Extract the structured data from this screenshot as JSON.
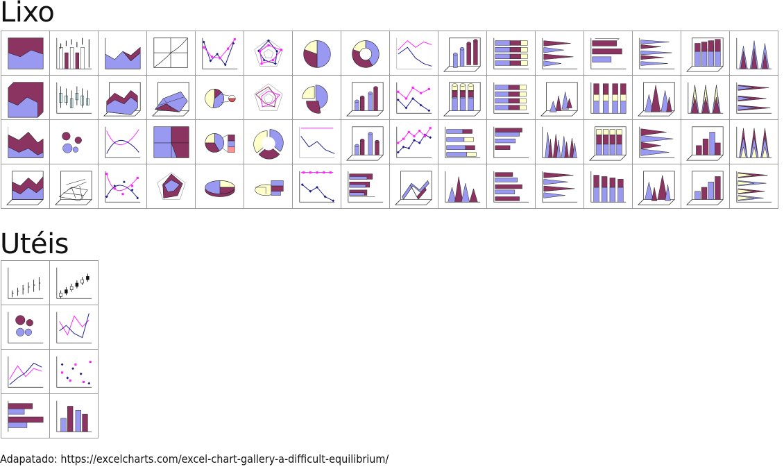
{
  "sections": {
    "lixo": {
      "title": "Lixo",
      "thumbnails": [
        {
          "icon": "area-stacked-2d-icon"
        },
        {
          "icon": "stock-volume-icon"
        },
        {
          "icon": "area-2d-icon"
        },
        {
          "icon": "surface-wireframe-top-icon"
        },
        {
          "icon": "line-markers-drop-icon"
        },
        {
          "icon": "radar-markers-icon"
        },
        {
          "icon": "pie-2d-icon"
        },
        {
          "icon": "doughnut-2d-icon"
        },
        {
          "icon": "line-2d-icon"
        },
        {
          "icon": "cylinder-3d-icon"
        },
        {
          "icon": "bar-stacked-2d-icon"
        },
        {
          "icon": "cone-bar-icon"
        },
        {
          "icon": "bar-3d-icon"
        },
        {
          "icon": "cone-bar-clustered-icon"
        },
        {
          "icon": "column-3d-stacked-icon"
        },
        {
          "icon": "cone-column-icon"
        },
        {
          "icon": "area-3d-icon"
        },
        {
          "icon": "stock-boxes-icon"
        },
        {
          "icon": "area-3d-perspective-icon"
        },
        {
          "icon": "surface-3d-icon"
        },
        {
          "icon": "pie-of-pie-icon"
        },
        {
          "icon": "radar-2d-icon"
        },
        {
          "icon": "pie-exploded-icon"
        },
        {
          "icon": "cylinder-3d-clustered-icon"
        },
        {
          "icon": "line-markers-icon"
        },
        {
          "icon": "cylinder-stacked-icon"
        },
        {
          "icon": "bar-3d-stacked-icon"
        },
        {
          "icon": "cone-3d-icon"
        },
        {
          "icon": "column-stacked-100-icon"
        },
        {
          "icon": "pyramid-3d-icon"
        },
        {
          "icon": "cone-stacked-icon"
        },
        {
          "icon": "cone-bar-stacked-icon"
        },
        {
          "icon": "area-stacked-alt-icon"
        },
        {
          "icon": "bubble-2d-icon"
        },
        {
          "icon": "scatter-smooth-icon"
        },
        {
          "icon": "surface-contour-icon"
        },
        {
          "icon": "bar-of-pie-icon"
        },
        {
          "icon": "doughnut-exploded-icon"
        },
        {
          "icon": "line-drop-icon"
        },
        {
          "icon": "cylinder-column-icon"
        },
        {
          "icon": "line-markers-dense-icon"
        },
        {
          "icon": "cylinder-bar-icon"
        },
        {
          "icon": "bar-clustered-icon"
        },
        {
          "icon": "cone-clustered-icon"
        },
        {
          "icon": "column-3d-stacked-alt-icon"
        },
        {
          "icon": "pyramid-bar-icon"
        },
        {
          "icon": "column-3d-clustered-icon"
        },
        {
          "icon": "cone-stacked-alt-icon"
        },
        {
          "icon": "area-3d-stacked-icon"
        },
        {
          "icon": "surface-3d-wireframe-icon"
        },
        {
          "icon": "scatter-smooth-markers-icon"
        },
        {
          "icon": "radar-filled-icon"
        },
        {
          "icon": "pie-3d-icon"
        },
        {
          "icon": "pie-3d-exploded-icon"
        },
        {
          "icon": "line-markers-flat-icon"
        },
        {
          "icon": "cylinder-bar-3d-icon"
        },
        {
          "icon": "line-3d-ribbon-icon"
        },
        {
          "icon": "pyramid-column-icon"
        },
        {
          "icon": "bar-3d-clustered-icon"
        },
        {
          "icon": "cone-bar-3d-icon"
        },
        {
          "icon": "column-stacked-2d-icon"
        },
        {
          "icon": "cone-3d-column-icon"
        },
        {
          "icon": "column-3d-cubes-icon"
        },
        {
          "icon": "cone-bar-3d-stacked-icon"
        }
      ]
    },
    "uteis": {
      "title": "Utéis",
      "thumbnails": [
        {
          "icon": "stock-high-low-close-icon"
        },
        {
          "icon": "stock-open-high-low-close-icon"
        },
        {
          "icon": "bubble-icon"
        },
        {
          "icon": "scatter-lines-icon"
        },
        {
          "icon": "line-icon"
        },
        {
          "icon": "scatter-icon"
        },
        {
          "icon": "bar-icon"
        },
        {
          "icon": "column-icon"
        }
      ]
    }
  },
  "source": "Adapatado: https://excelcharts.com/excel-chart-gallery-a-difficult-equilibrium/",
  "colors": {
    "primary": "#8b3462",
    "secondary": "#9999f2",
    "cream": "#ffffcc",
    "magenta": "#ff22ff",
    "navy": "#1a1a8c",
    "cell_border": "#9a9a9a"
  }
}
